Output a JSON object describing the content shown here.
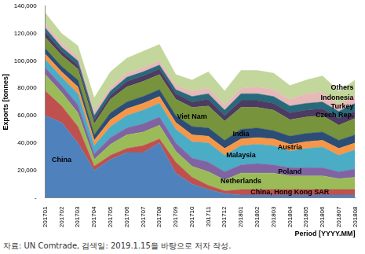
{
  "chart_data": {
    "type": "area",
    "stacked": true,
    "grid": false,
    "x_label": "Period [YYYY.MM]",
    "y_label": "Exports [tonnes]",
    "source": "자료: UN Comtrade, 검색일: 2019.1.15을 바탕으로 저자 작성.",
    "categories": [
      "201701",
      "201702",
      "201703",
      "201704",
      "201705",
      "201706",
      "201707",
      "201708",
      "201709",
      "201710",
      "201711",
      "201712",
      "201801",
      "201802",
      "201803",
      "201804",
      "201805",
      "201806",
      "201807",
      "201808"
    ],
    "ylim": [
      0,
      140000
    ],
    "yticks": [
      {
        "value": 0,
        "label": "-"
      },
      {
        "value": 20000,
        "label": "20,000"
      },
      {
        "value": 40000,
        "label": "40,000"
      },
      {
        "value": 60000,
        "label": "60,000"
      },
      {
        "value": 80000,
        "label": "80,000"
      },
      {
        "value": 100000,
        "label": "100,000"
      },
      {
        "value": 120000,
        "label": "120,000"
      },
      {
        "value": 140000,
        "label": "140,000"
      }
    ],
    "series": [
      {
        "name": "China",
        "color": "#4F81BD",
        "values": [
          60000,
          55000,
          40000,
          20000,
          28000,
          33000,
          33000,
          40000,
          18000,
          10000,
          6000,
          3000,
          2000,
          2000,
          2000,
          2000,
          2000,
          2000,
          2000,
          2000
        ]
      },
      {
        "name": "China, Hong Kong SAR",
        "color": "#C0504D",
        "values": [
          18000,
          12000,
          12000,
          3000,
          3000,
          3000,
          5000,
          3000,
          8000,
          5000,
          3000,
          2000,
          4000,
          4000,
          4000,
          4000,
          4000,
          4000,
          4000,
          4000
        ]
      },
      {
        "name": "Netherlands",
        "color": "#9BBB59",
        "values": [
          12000,
          10000,
          10000,
          5000,
          8000,
          10000,
          10000,
          10000,
          8000,
          8000,
          10000,
          8000,
          12000,
          12000,
          12000,
          10000,
          10000,
          10000,
          8000,
          9000
        ]
      },
      {
        "name": "Poland",
        "color": "#8064A2",
        "values": [
          5000,
          5000,
          6000,
          4000,
          5000,
          5000,
          6000,
          6000,
          6000,
          6000,
          7000,
          6000,
          6000,
          7000,
          6000,
          6000,
          6000,
          6000,
          5000,
          6000
        ]
      },
      {
        "name": "Malaysia",
        "color": "#4BACC6",
        "values": [
          6000,
          6000,
          8000,
          6000,
          8000,
          9000,
          10000,
          10000,
          10000,
          12000,
          14000,
          12000,
          14000,
          14000,
          14000,
          12000,
          14000,
          15000,
          12000,
          14000
        ]
      },
      {
        "name": "Austria",
        "color": "#F79646",
        "values": [
          4000,
          4000,
          5000,
          4000,
          5000,
          5000,
          5000,
          5000,
          5000,
          5000,
          5000,
          5000,
          5000,
          5000,
          5000,
          5000,
          5000,
          5000,
          5000,
          5000
        ]
      },
      {
        "name": "India",
        "color": "#2C4D75",
        "values": [
          4000,
          4000,
          5000,
          4000,
          5000,
          5000,
          5000,
          5000,
          5000,
          6000,
          6000,
          6000,
          7000,
          7000,
          6000,
          6000,
          6000,
          6000,
          6000,
          6000
        ]
      },
      {
        "name": "Viet Nam",
        "color": "#77933C",
        "values": [
          8000,
          8000,
          8000,
          8000,
          10000,
          11000,
          11000,
          11000,
          12000,
          14000,
          16000,
          14000,
          16000,
          15000,
          15000,
          12000,
          12000,
          12000,
          11000,
          12000
        ]
      },
      {
        "name": "Czech Rep.",
        "color": "#4D3B62",
        "values": [
          4000,
          3000,
          3000,
          3000,
          3000,
          4000,
          4000,
          4000,
          4000,
          4000,
          5000,
          4000,
          5000,
          5000,
          5000,
          5000,
          5000,
          5000,
          5000,
          5000
        ]
      },
      {
        "name": "Turkey",
        "color": "#276A7C",
        "values": [
          3000,
          3000,
          3000,
          3000,
          3000,
          3000,
          3000,
          3000,
          3000,
          4000,
          4000,
          4000,
          5000,
          5000,
          5000,
          5000,
          5000,
          5000,
          5000,
          6000
        ]
      },
      {
        "name": "Indonesia",
        "color": "#E6B9B8",
        "values": [
          3000,
          3000,
          3000,
          3000,
          3000,
          3000,
          3000,
          3000,
          3000,
          4000,
          4000,
          4000,
          4000,
          5000,
          5000,
          5000,
          7000,
          7000,
          5000,
          6000
        ]
      },
      {
        "name": "Others",
        "color": "#C3D69B",
        "values": [
          8000,
          7000,
          8000,
          10000,
          11000,
          11000,
          12000,
          12000,
          8000,
          8000,
          12000,
          10000,
          13000,
          12000,
          12000,
          10000,
          10000,
          12000,
          10000,
          11000
        ]
      }
    ]
  }
}
